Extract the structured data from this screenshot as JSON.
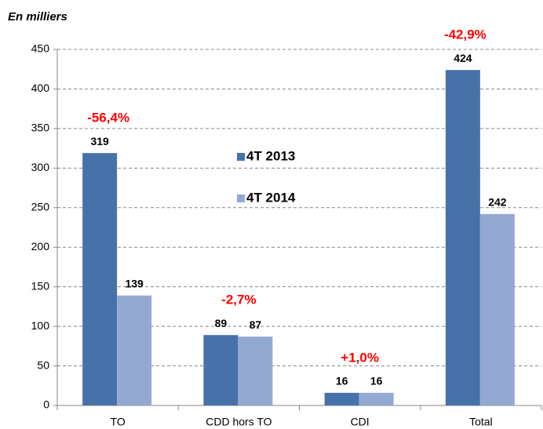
{
  "chart_data": {
    "type": "bar",
    "subtitle": "En milliers",
    "categories": [
      "TO",
      "CDD hors TO",
      "CDI",
      "Total"
    ],
    "series": [
      {
        "name": "4T 2013",
        "color": "#4772a9",
        "values": [
          319,
          89,
          16,
          424
        ]
      },
      {
        "name": "4T 2014",
        "color": "#94a9d2",
        "values": [
          139,
          87,
          16,
          242
        ]
      }
    ],
    "annotations": [
      "-56,4%",
      "-2,7%",
      "+1,0%",
      "-42,9%"
    ],
    "ylim": [
      0,
      450
    ],
    "yticks": [
      0,
      50,
      100,
      150,
      200,
      250,
      300,
      350,
      400,
      450
    ],
    "grid": true,
    "legend": "center"
  }
}
